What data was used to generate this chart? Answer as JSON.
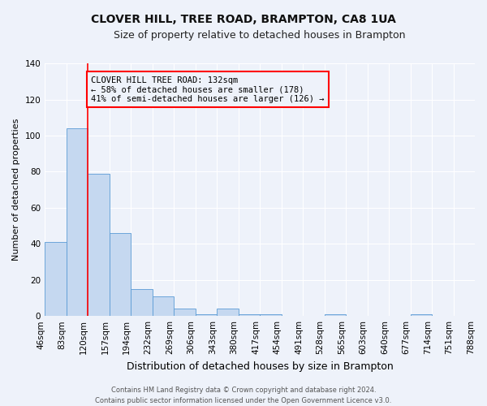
{
  "title": "CLOVER HILL, TREE ROAD, BRAMPTON, CA8 1UA",
  "subtitle": "Size of property relative to detached houses in Brampton",
  "xlabel": "Distribution of detached houses by size in Brampton",
  "ylabel": "Number of detached properties",
  "bar_values": [
    41,
    104,
    79,
    46,
    15,
    11,
    4,
    1,
    4,
    1,
    1,
    0,
    0,
    1,
    0,
    0,
    0,
    1,
    0,
    0
  ],
  "bin_labels": [
    "46sqm",
    "83sqm",
    "120sqm",
    "157sqm",
    "194sqm",
    "232sqm",
    "269sqm",
    "306sqm",
    "343sqm",
    "380sqm",
    "417sqm",
    "454sqm",
    "491sqm",
    "528sqm",
    "565sqm",
    "603sqm",
    "640sqm",
    "677sqm",
    "714sqm",
    "751sqm",
    "788sqm"
  ],
  "bar_color": "#c5d8f0",
  "bar_edge_color": "#5b9bd5",
  "vline_color": "red",
  "vline_x_index": 2,
  "ylim": [
    0,
    140
  ],
  "yticks": [
    0,
    20,
    40,
    60,
    80,
    100,
    120,
    140
  ],
  "annotation_title": "CLOVER HILL TREE ROAD: 132sqm",
  "annotation_line1": "← 58% of detached houses are smaller (178)",
  "annotation_line2": "41% of semi-detached houses are larger (126) →",
  "annotation_box_color": "red",
  "footer_line1": "Contains HM Land Registry data © Crown copyright and database right 2024.",
  "footer_line2": "Contains public sector information licensed under the Open Government Licence v3.0.",
  "background_color": "#eef2fa",
  "grid_color": "#ffffff",
  "title_fontsize": 10,
  "subtitle_fontsize": 9,
  "ylabel_fontsize": 8,
  "xlabel_fontsize": 9,
  "tick_fontsize": 7.5,
  "annot_fontsize": 7.5,
  "footer_fontsize": 6
}
